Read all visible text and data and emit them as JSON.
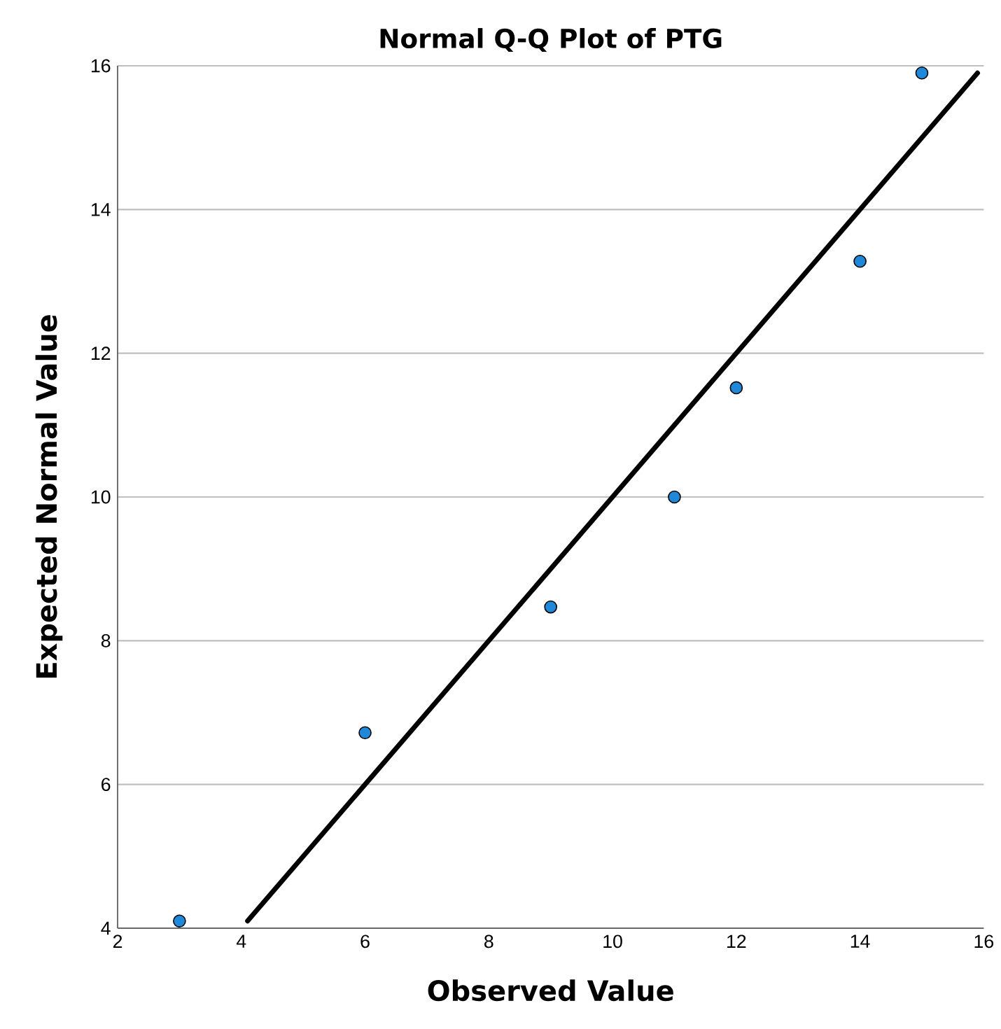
{
  "chart_data": {
    "type": "scatter",
    "title": "Normal Q-Q Plot of PTG",
    "xlabel": "Observed Value",
    "ylabel": "Expected Normal Value",
    "xlim": [
      2,
      16
    ],
    "ylim": [
      4,
      16
    ],
    "xticks": [
      2,
      4,
      6,
      8,
      10,
      12,
      14,
      16
    ],
    "yticks": [
      4,
      6,
      8,
      10,
      12,
      14,
      16
    ],
    "grid": "y",
    "series": [
      {
        "marker": "circle",
        "color": "#1f88d8",
        "x": [
          3,
          6,
          9,
          11,
          12,
          14,
          15
        ],
        "values": [
          4.1,
          6.72,
          8.47,
          10.0,
          11.52,
          13.28,
          15.9
        ]
      },
      {
        "type": "line",
        "marker": "none",
        "color": "#000000",
        "x": [
          4.1,
          15.9
        ],
        "values": [
          4.1,
          15.9
        ]
      }
    ]
  }
}
